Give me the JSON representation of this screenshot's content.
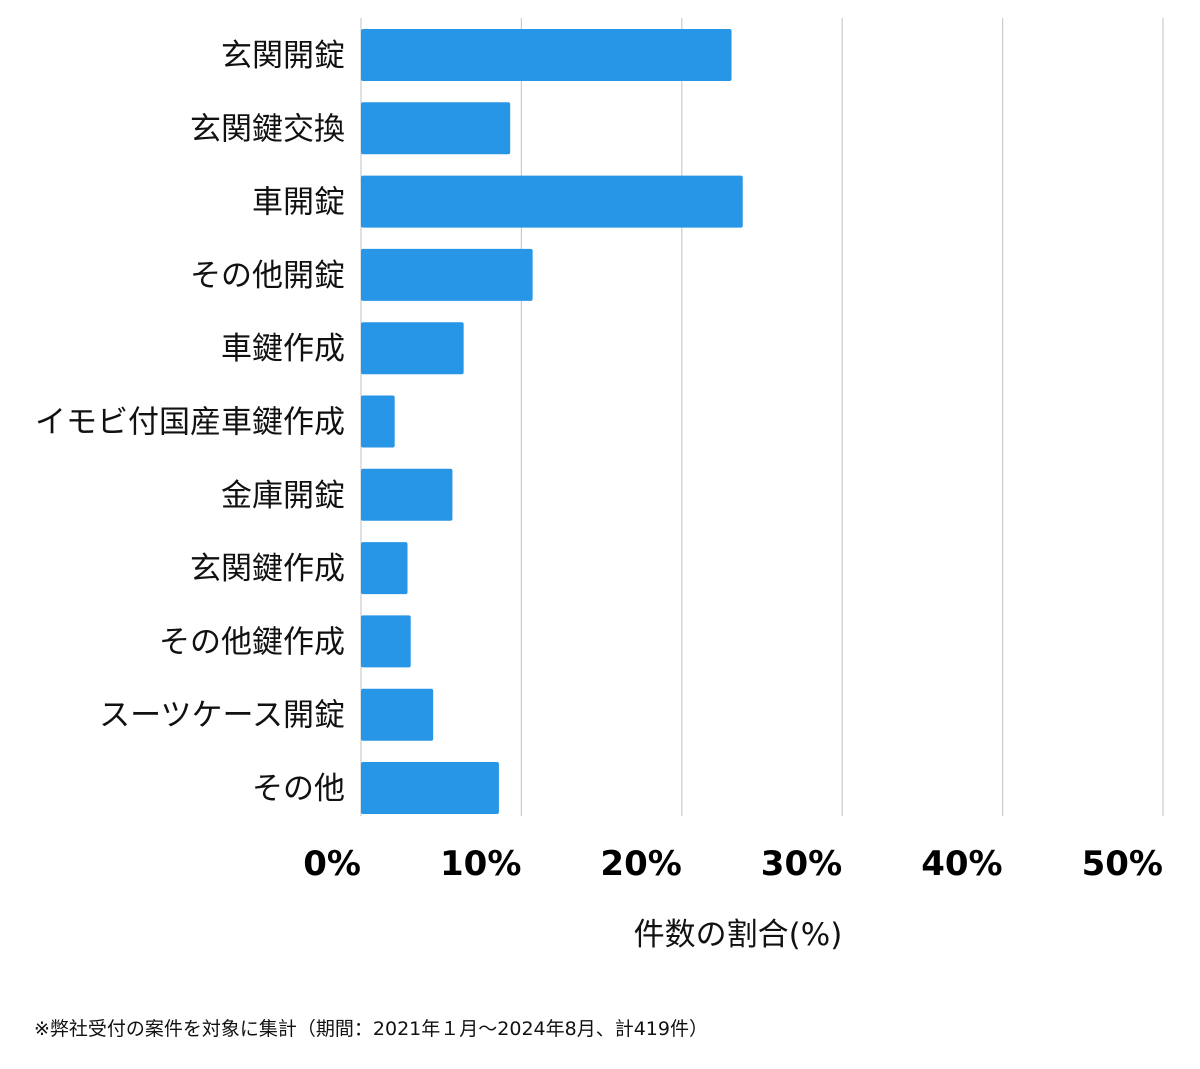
{
  "chart_data": {
    "type": "bar",
    "orientation": "horizontal",
    "categories": [
      "玄関開錠",
      "玄関鍵交換",
      "車開錠",
      "その他開錠",
      "車鍵作成",
      "イモビ付国産車鍵作成",
      "金庫開錠",
      "玄関鍵作成",
      "その他鍵作成",
      "スーツケース開錠",
      "その他"
    ],
    "values": [
      23.1,
      9.3,
      23.8,
      10.7,
      6.4,
      2.1,
      5.7,
      2.9,
      3.1,
      4.5,
      8.6
    ],
    "xlabel": "件数の割合(%)",
    "xlim": [
      0,
      50
    ],
    "xticks": [
      0,
      10,
      20,
      30,
      40,
      50
    ],
    "xtick_labels": [
      "0%",
      "10%",
      "20%",
      "30%",
      "40%",
      "50%"
    ],
    "grid": "vertical",
    "bar_color": "#2896e6",
    "grid_color": "#cccccc"
  },
  "footnote": "※弊社受付の案件を対象に集計（期間：2021年１月〜2024年8月、計419件）"
}
